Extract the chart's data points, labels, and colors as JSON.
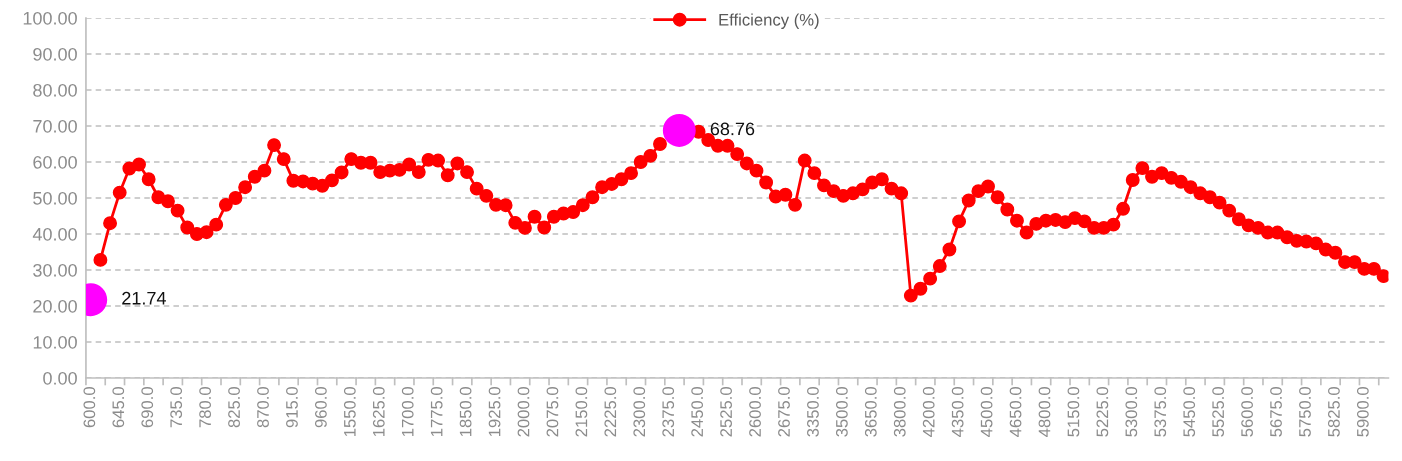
{
  "chart_data": {
    "type": "line",
    "categories": [
      "600.0",
      null,
      null,
      "645.0",
      null,
      null,
      "690.0",
      null,
      null,
      "735.0",
      null,
      null,
      "780.0",
      null,
      null,
      "825.0",
      null,
      null,
      "870.0",
      null,
      null,
      "915.0",
      null,
      null,
      "960.0",
      null,
      null,
      "1550.0",
      null,
      null,
      "1625.0",
      null,
      null,
      "1700.0",
      null,
      null,
      "1775.0",
      null,
      null,
      "1850.0",
      null,
      null,
      "1925.0",
      null,
      null,
      "2000.0",
      null,
      null,
      "2075.0",
      null,
      null,
      "2150.0",
      null,
      null,
      "2225.0",
      null,
      null,
      "2300.0",
      null,
      null,
      "2375.0",
      null,
      null,
      "2450.0",
      null,
      null,
      "2525.0",
      null,
      null,
      "2600.0",
      null,
      null,
      "2675.0",
      null,
      null,
      "3350.0",
      null,
      null,
      "3500.0",
      null,
      null,
      "3650.0",
      null,
      null,
      "3800.0",
      null,
      null,
      "4200.0",
      null,
      null,
      "4350.0",
      null,
      null,
      "4500.0",
      null,
      null,
      "4650.0",
      null,
      null,
      "4800.0",
      null,
      null,
      "5150.0",
      null,
      null,
      "5225.0",
      null,
      null,
      "5300.0",
      null,
      null,
      "5375.0",
      null,
      null,
      "5450.0",
      null,
      null,
      "5525.0",
      null,
      null,
      "5600.0",
      null,
      null,
      "5675.0",
      null,
      null,
      "5750.0",
      null,
      null,
      "5825.0",
      null,
      null,
      "5900.0",
      null,
      null
    ],
    "series": [
      {
        "name": "Efficiency (%)",
        "color": "#ff0000",
        "marker": "circle",
        "values": [
          null,
          32.8,
          43.0,
          51.5,
          58.2,
          59.3,
          55.2,
          50.2,
          49.1,
          46.5,
          41.8,
          40.0,
          40.5,
          42.6,
          48.1,
          50.0,
          53.0,
          55.9,
          57.6,
          64.7,
          60.8,
          54.8,
          54.6,
          54.0,
          53.4,
          54.9,
          57.1,
          60.8,
          59.8,
          59.8,
          57.2,
          57.6,
          57.8,
          59.3,
          57.2,
          60.6,
          60.4,
          56.3,
          59.6,
          57.2,
          52.6,
          50.6,
          48.1,
          48.0,
          43.1,
          41.7,
          44.8,
          41.8,
          44.8,
          45.7,
          46.1,
          48.0,
          50.2,
          53.0,
          53.9,
          55.2,
          56.9,
          60.0,
          61.7,
          65.0,
          null,
          null,
          null,
          68.4,
          66.1,
          64.5,
          64.5,
          62.2,
          59.6,
          57.6,
          54.3,
          50.4,
          50.9,
          48.1,
          60.4,
          56.9,
          53.5,
          51.9,
          50.6,
          51.3,
          52.4,
          54.3,
          55.2,
          52.6,
          51.3,
          22.9,
          24.8,
          27.6,
          31.1,
          35.7,
          43.5,
          49.3,
          51.9,
          53.2,
          50.2,
          46.8,
          43.7,
          40.4,
          42.8,
          43.7,
          43.9,
          43.3,
          44.4,
          43.5,
          41.7,
          41.7,
          42.6,
          47.0,
          55.0,
          58.3,
          55.9,
          56.9,
          55.6,
          54.5,
          53.0,
          51.3,
          50.2,
          48.7,
          46.5,
          44.1,
          42.4,
          41.7,
          40.4,
          40.4,
          39.1,
          38.1,
          37.9,
          37.4,
          35.7,
          34.8,
          32.2,
          32.2,
          30.3,
          30.3,
          28.3
        ]
      },
      {
        "color": "#ff00ff",
        "type": "scatter",
        "marker": "circle",
        "values": [
          21.74,
          null,
          null,
          null,
          null,
          null,
          null,
          null,
          null,
          null,
          null,
          null,
          null,
          null,
          null,
          null,
          null,
          null,
          null,
          null,
          null,
          null,
          null,
          null,
          null,
          null,
          null,
          null,
          null,
          null,
          null,
          null,
          null,
          null,
          null,
          null,
          null,
          null,
          null,
          null,
          null,
          null,
          null,
          null,
          null,
          null,
          null,
          null,
          null,
          null,
          null,
          null,
          null,
          null,
          null,
          null,
          null,
          null,
          null,
          null,
          null,
          68.76,
          null,
          null,
          null,
          null,
          null,
          null,
          null,
          null,
          null,
          null,
          null,
          null,
          null,
          null,
          null,
          null,
          null,
          null,
          null,
          null,
          null,
          null,
          null,
          null,
          null,
          null,
          null,
          null,
          null,
          null,
          null,
          null,
          null,
          null,
          null,
          null,
          null,
          null,
          null,
          null,
          null,
          null,
          null,
          null,
          null,
          null,
          null,
          null,
          null,
          null,
          null,
          null,
          null,
          null,
          null,
          null,
          null,
          null,
          null,
          null,
          null,
          null,
          null,
          null,
          null,
          null,
          null,
          null,
          null,
          null,
          null,
          null,
          null
        ],
        "value_labels": [
          "21.74",
          null,
          null,
          null,
          null,
          null,
          null,
          null,
          null,
          null,
          null,
          null,
          null,
          null,
          null,
          null,
          null,
          null,
          null,
          null,
          null,
          null,
          null,
          null,
          null,
          null,
          null,
          null,
          null,
          null,
          null,
          null,
          null,
          null,
          null,
          null,
          null,
          null,
          null,
          null,
          null,
          null,
          null,
          null,
          null,
          null,
          null,
          null,
          null,
          null,
          null,
          null,
          null,
          null,
          null,
          null,
          null,
          null,
          null,
          null,
          null,
          "68.76",
          null,
          null,
          null,
          null,
          null,
          null,
          null,
          null,
          null,
          null,
          null,
          null,
          null,
          null,
          null,
          null,
          null,
          null,
          null,
          null,
          null,
          null,
          null,
          null,
          null,
          null,
          null,
          null,
          null,
          null,
          null,
          null,
          null,
          null,
          null,
          null,
          null,
          null,
          null,
          null,
          null,
          null,
          null,
          null,
          null,
          null,
          null,
          null,
          null,
          null,
          null,
          null,
          null,
          null,
          null,
          null,
          null,
          null,
          null,
          null,
          null,
          null,
          null,
          null,
          null,
          null,
          null,
          null,
          null,
          null,
          null,
          null,
          null
        ]
      }
    ],
    "ylim": [
      0,
      100
    ],
    "yticks": [
      {
        "value": 0,
        "label": "0.00"
      },
      {
        "value": 10,
        "label": "10.00"
      },
      {
        "value": 20,
        "label": "20.00"
      },
      {
        "value": 30,
        "label": "30.00"
      },
      {
        "value": 40,
        "label": "40.00"
      },
      {
        "value": 50,
        "label": "50.00"
      },
      {
        "value": 60,
        "label": "60.00"
      },
      {
        "value": 70,
        "label": "70.00"
      },
      {
        "value": 80,
        "label": "80.00"
      },
      {
        "value": 90,
        "label": "90.00"
      },
      {
        "value": 100,
        "label": "100.00"
      }
    ],
    "grid": "y",
    "legend": "top",
    "line_style": "solid"
  }
}
